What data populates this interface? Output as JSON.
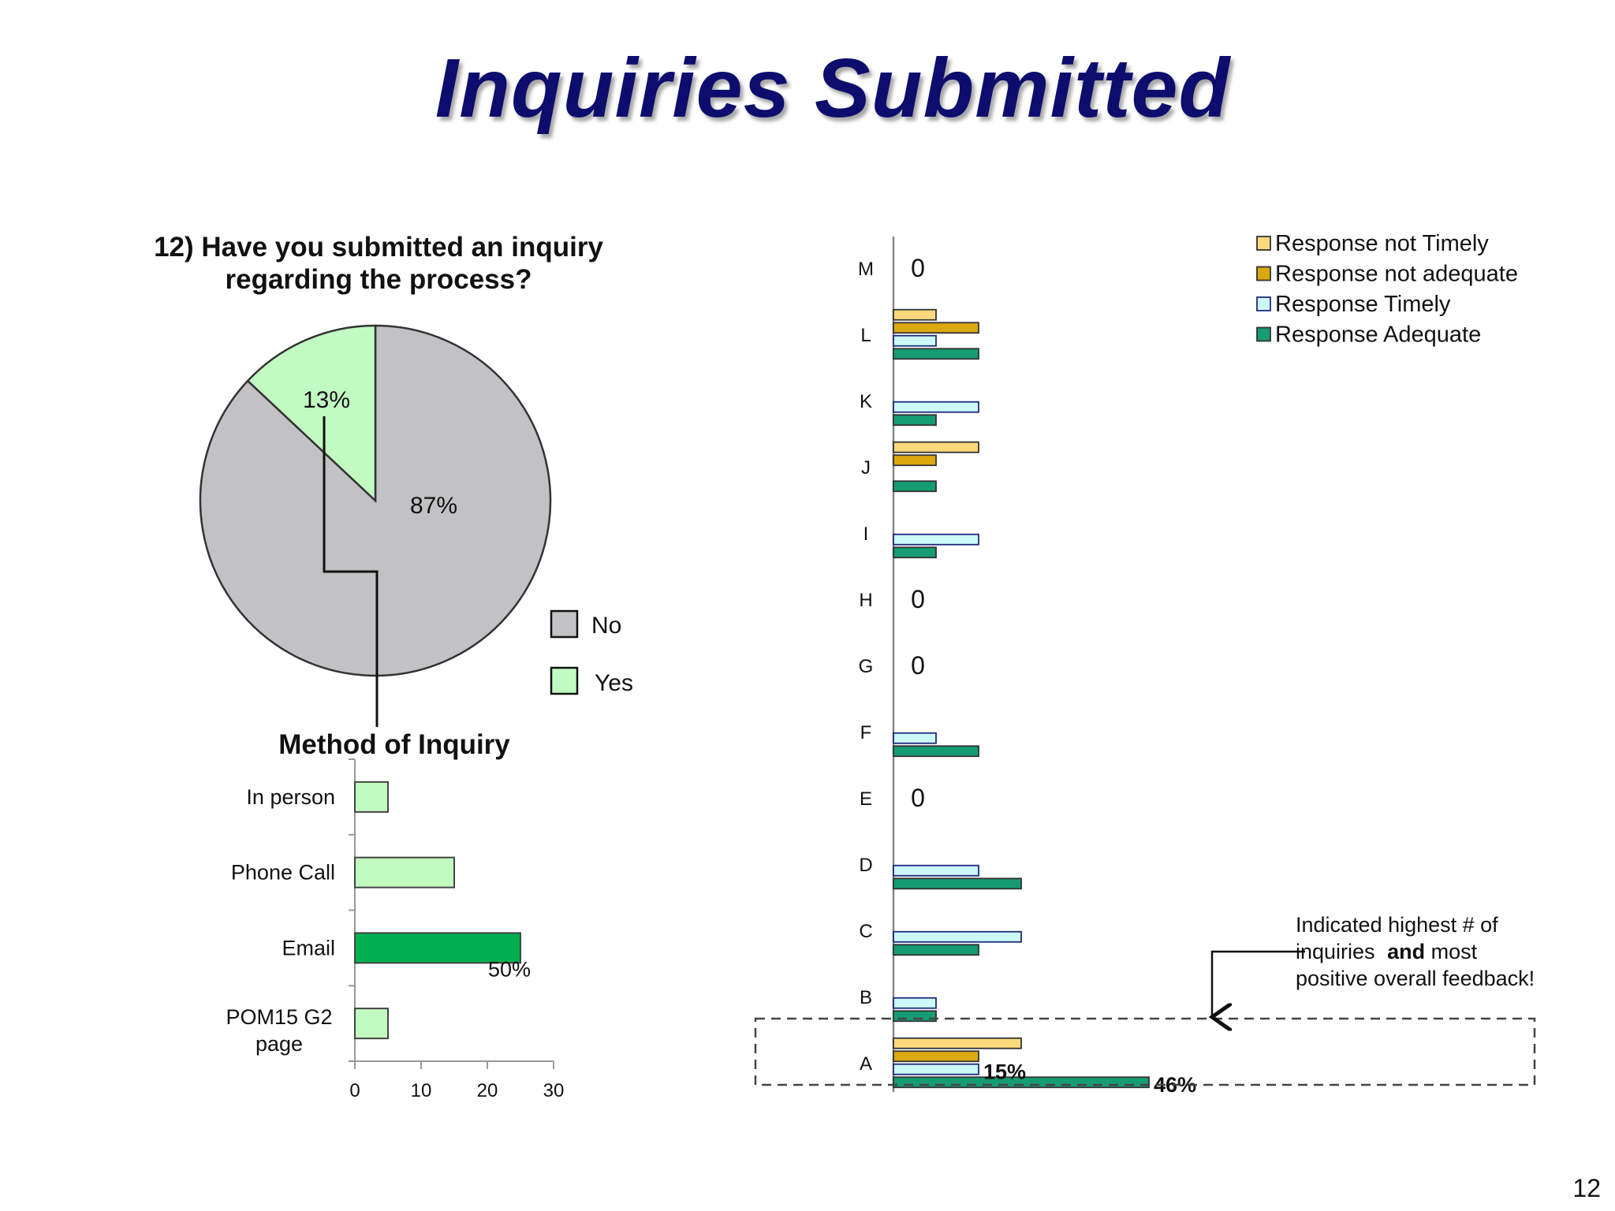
{
  "slide": {
    "title": "Inquiries Submitted",
    "page_number": "12",
    "annotation": {
      "line1": "Indicated highest # of",
      "line2_pre": "inquiries ",
      "line2_bold": "and",
      "line2_post": " most",
      "line3": "positive overall feedback!"
    }
  },
  "chart_data": [
    {
      "type": "pie",
      "title": "12) Have you submitted an inquiry regarding the process?",
      "slices": [
        {
          "label": "No",
          "value": 87,
          "display": "87%"
        },
        {
          "label": "Yes",
          "value": 13,
          "display": "13%"
        }
      ],
      "legend": [
        "No",
        "Yes"
      ],
      "legend_position": "right",
      "colors": {
        "No": "#c2c1c3",
        "Yes": "#c1fbc1"
      }
    },
    {
      "type": "bar",
      "orientation": "horizontal",
      "title": "Method of Inquiry",
      "categories": [
        "In person",
        "Phone Call",
        "Email",
        "POM15 G2 page"
      ],
      "values": [
        5,
        15,
        25,
        5
      ],
      "xlim": [
        0,
        30
      ],
      "xticks": [
        "0",
        "10",
        "20",
        "30"
      ],
      "data_label": {
        "category": "Email",
        "text": "50%"
      },
      "colors": {
        "default": "#c1fbc1",
        "highlight": "#00b050"
      }
    },
    {
      "type": "bar",
      "orientation": "horizontal",
      "categories": [
        "A",
        "B",
        "C",
        "D",
        "E",
        "F",
        "G",
        "H",
        "I",
        "J",
        "K",
        "L",
        "M"
      ],
      "series": [
        {
          "name": "Response not Timely",
          "color": "#fcd97a",
          "values": [
            6,
            0,
            0,
            0,
            0,
            0,
            0,
            0,
            0,
            4,
            0,
            2,
            0
          ]
        },
        {
          "name": "Response not adequate",
          "color": "#dba80e",
          "values": [
            4,
            0,
            0,
            0,
            0,
            0,
            0,
            0,
            0,
            2,
            0,
            4,
            0
          ]
        },
        {
          "name": "Response Timely",
          "color": "#ccf9f8",
          "values": [
            4,
            2,
            6,
            4,
            0,
            2,
            0,
            0,
            4,
            0,
            4,
            2,
            0
          ]
        },
        {
          "name": "Response Adequate",
          "color": "#169c72",
          "values": [
            12,
            2,
            4,
            6,
            0,
            4,
            0,
            0,
            2,
            2,
            2,
            4,
            0
          ]
        }
      ],
      "zero_labels": [
        "M",
        "H",
        "G",
        "E"
      ],
      "zero_label_text": "0",
      "data_labels": [
        {
          "category": "A",
          "series": "Response Timely",
          "text": "15%"
        },
        {
          "category": "A",
          "series": "Response Adequate",
          "text": "46%"
        }
      ],
      "legend_position": "top-right",
      "highlight_category": "A"
    }
  ]
}
